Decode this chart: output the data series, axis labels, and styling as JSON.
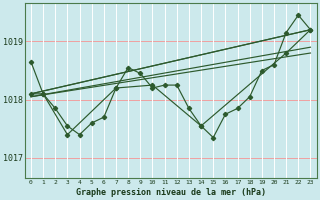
{
  "background_color": "#cce9ec",
  "grid_color_h": "#f0a0a0",
  "grid_color_v": "#ffffff",
  "line_color": "#2d5a2d",
  "title": "Graphe pression niveau de la mer (hPa)",
  "ylabel_ticks": [
    1017,
    1018,
    1019
  ],
  "xlim": [
    -0.5,
    23.5
  ],
  "ylim": [
    1016.65,
    1019.65
  ],
  "xtick_labels": [
    "0",
    "1",
    "2",
    "3",
    "4",
    "5",
    "6",
    "7",
    "8",
    "9",
    "10",
    "11",
    "12",
    "13",
    "14",
    "15",
    "16",
    "17",
    "18",
    "19",
    "20",
    "21",
    "22",
    "23"
  ],
  "series": [
    {
      "x": [
        0,
        1,
        2,
        3,
        4,
        5,
        6,
        7,
        8,
        9,
        10,
        11,
        12,
        13,
        14,
        15,
        16,
        17,
        18,
        19,
        20,
        21,
        22,
        23
      ],
      "y": [
        1018.65,
        1018.1,
        1017.85,
        1017.55,
        1017.4,
        1017.6,
        1017.7,
        1018.2,
        1018.55,
        1018.45,
        1018.2,
        1018.25,
        1018.25,
        1017.85,
        1017.55,
        1017.35,
        1017.75,
        1017.85,
        1018.05,
        1018.5,
        1018.6,
        1019.15,
        1019.45,
        1019.2
      ]
    },
    {
      "x": [
        0,
        1,
        3,
        7,
        10,
        14,
        21,
        23
      ],
      "y": [
        1018.1,
        1018.1,
        1017.4,
        1018.2,
        1018.25,
        1017.55,
        1018.8,
        1019.2
      ]
    },
    {
      "x": [
        0,
        23
      ],
      "y": [
        1018.1,
        1019.2
      ]
    },
    {
      "x": [
        0,
        23
      ],
      "y": [
        1018.1,
        1019.2
      ]
    },
    {
      "x": [
        0,
        23
      ],
      "y": [
        1018.05,
        1018.8
      ]
    },
    {
      "x": [
        0,
        23
      ],
      "y": [
        1018.05,
        1018.9
      ]
    }
  ]
}
